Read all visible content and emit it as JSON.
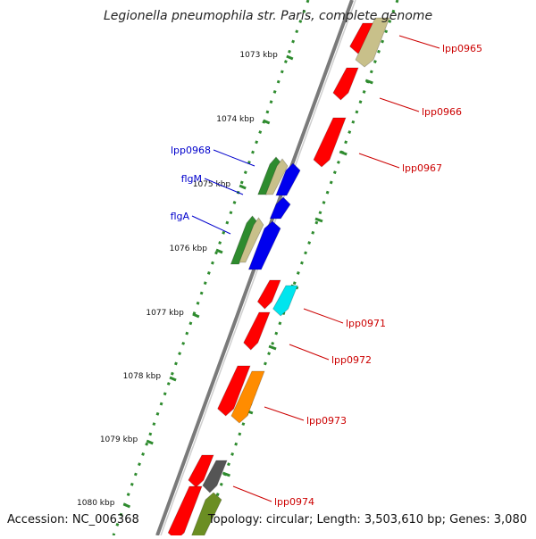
{
  "title": "Legionella pneumophila str. Paris, complete genome",
  "footer": {
    "accession": "Accession: NC_006368",
    "summary": "Topology: circular; Length: 3,503,610 bp; Genes: 3,080"
  },
  "colors": {
    "backbone": "#7a7a7a",
    "tick": "#2e8b2e",
    "label_forward": "#cc0000",
    "label_reverse": "#0000cc"
  },
  "kbp_ticks": [
    "1073 kbp",
    "1074 kbp",
    "1075 kbp",
    "1076 kbp",
    "1077 kbp",
    "1078 kbp",
    "1079 kbp",
    "1080 kbp"
  ],
  "gene_labels": [
    {
      "text": "lpp0965",
      "color": "#cc0000"
    },
    {
      "text": "lpp0966",
      "color": "#cc0000"
    },
    {
      "text": "lpp0967",
      "color": "#cc0000"
    },
    {
      "text": "lpp0968",
      "color": "#0000cc"
    },
    {
      "text": "flgM",
      "color": "#0000cc"
    },
    {
      "text": "flgA",
      "color": "#0000cc"
    },
    {
      "text": "lpp0971",
      "color": "#cc0000"
    },
    {
      "text": "lpp0972",
      "color": "#cc0000"
    },
    {
      "text": "lpp0973",
      "color": "#cc0000"
    },
    {
      "text": "lpp0974",
      "color": "#cc0000"
    }
  ],
  "features": [
    {
      "name": "red",
      "color": "#ff0000"
    },
    {
      "name": "olive",
      "color": "#c8c08a"
    },
    {
      "name": "blue",
      "color": "#0000ee"
    },
    {
      "name": "green",
      "color": "#2e8b2e"
    },
    {
      "name": "cyan",
      "color": "#00e5ee"
    },
    {
      "name": "orange",
      "color": "#ff8c00"
    },
    {
      "name": "gray",
      "color": "#555555"
    },
    {
      "name": "olive-green",
      "color": "#6b8e23"
    }
  ]
}
